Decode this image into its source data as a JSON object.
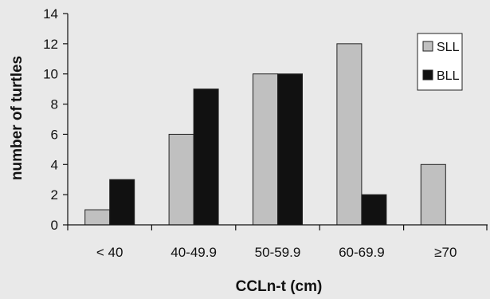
{
  "chart_data": {
    "type": "bar",
    "title": "",
    "xlabel": "CCLn-t (cm)",
    "ylabel": "number of turtles",
    "categories": [
      "< 40",
      "40-49.9",
      "50-59.9",
      "60-69.9",
      "≥70"
    ],
    "series": [
      {
        "name": "SLL",
        "color": "#c0c0c0",
        "values": [
          1,
          6,
          10,
          12,
          4
        ]
      },
      {
        "name": "BLL",
        "color": "#111111",
        "values": [
          3,
          9,
          10,
          2,
          0
        ]
      }
    ],
    "ylim": [
      0,
      14
    ],
    "yticks": [
      0,
      2,
      4,
      6,
      8,
      10,
      12,
      14
    ],
    "grid": false,
    "legend_position": "top-right",
    "background": "#e9e9e9"
  }
}
